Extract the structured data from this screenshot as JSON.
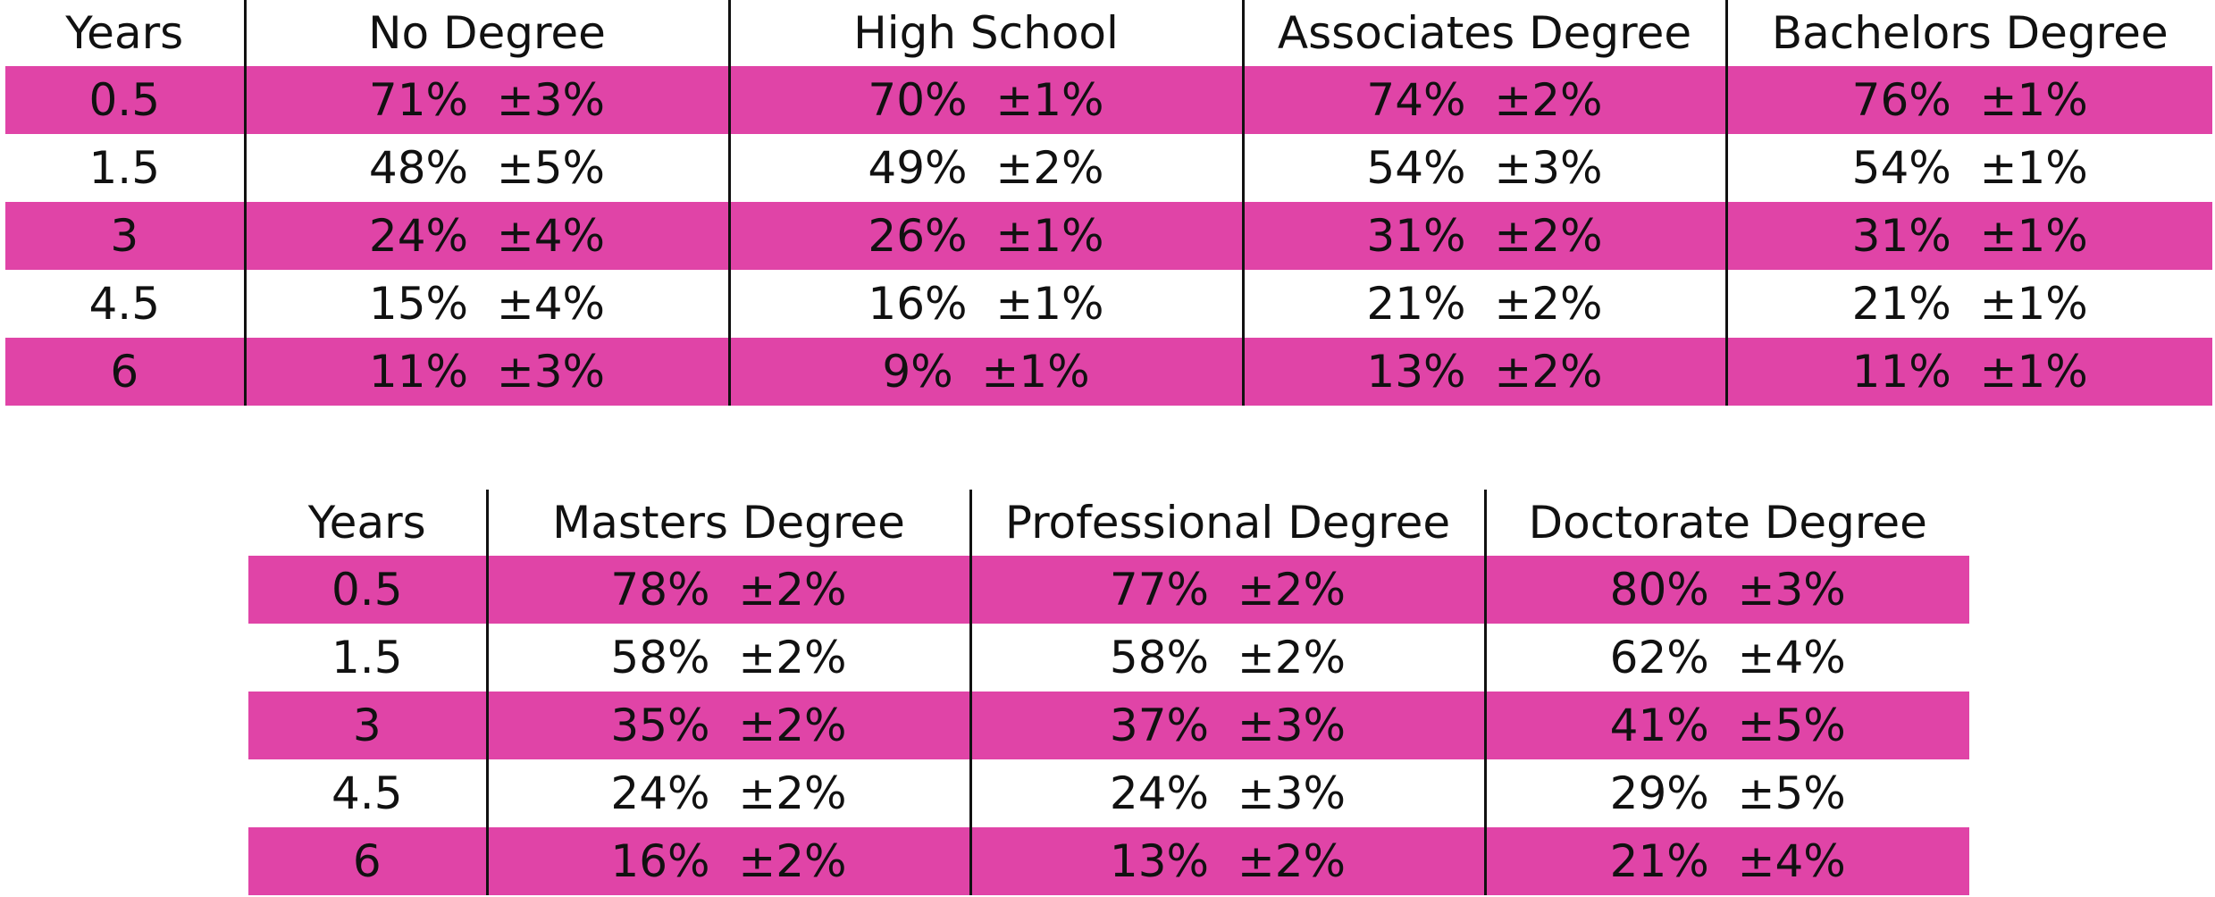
{
  "tables": [
    {
      "headers": [
        "Years",
        "No Degree",
        "High School",
        "Associates Degree",
        "Bachelors Degree"
      ],
      "rows": [
        [
          "0.5",
          "71%  ±3%",
          "70%  ±1%",
          "74%  ±2%",
          "76%  ±1%"
        ],
        [
          "1.5",
          "48%  ±5%",
          "49%  ±2%",
          "54%  ±3%",
          "54%  ±1%"
        ],
        [
          "3",
          "24%  ±4%",
          "26%  ±1%",
          "31%  ±2%",
          "31%  ±1%"
        ],
        [
          "4.5",
          "15%  ±4%",
          "16%  ±1%",
          "21%  ±2%",
          "21%  ±1%"
        ],
        [
          "6",
          "11%  ±3%",
          "9%  ±1%",
          "13%  ±2%",
          "11%  ±1%"
        ]
      ]
    },
    {
      "headers": [
        "Years",
        "Masters Degree",
        "Professional Degree",
        "Doctorate Degree"
      ],
      "rows": [
        [
          "0.5",
          "78%  ±2%",
          "77%  ±2%",
          "80%  ±3%"
        ],
        [
          "1.5",
          "58%  ±2%",
          "58%  ±2%",
          "62%  ±4%"
        ],
        [
          "3",
          "35%  ±2%",
          "37%  ±3%",
          "41%  ±5%"
        ],
        [
          "4.5",
          "24%  ±2%",
          "24%  ±3%",
          "29%  ±5%"
        ],
        [
          "6",
          "16%  ±2%",
          "13%  ±2%",
          "21%  ±4%"
        ]
      ]
    }
  ]
}
